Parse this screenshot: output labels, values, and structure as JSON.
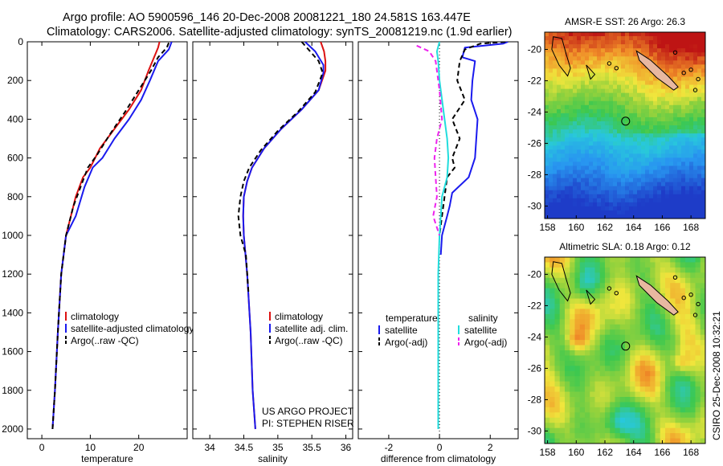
{
  "header": {
    "line1": "Argo profile: AO 5900596_146 20-Dec-2008 20081221_180 24.581S 163.447E",
    "line2": "Climatology: CARS2006. Satellite-adjusted climatology: synTS_20081219.nc (1.9d earlier)"
  },
  "credits": {
    "project": "US ARGO PROJECT",
    "pi": "PI: STEPHEN RISER",
    "side": "CSIRO 25-Dec-2008 10:32:21"
  },
  "colors": {
    "climatology": "#dd1111",
    "satellite": "#1a1aee",
    "argo": "#000000",
    "diff_temp_sat": "#1a1aee",
    "diff_sal_sat": "#22dddd",
    "diff_sal_argo": "#ee22ee"
  },
  "chart_data": [
    {
      "type": "line",
      "id": "temperature",
      "xlabel": "temperature",
      "xlim": [
        -3,
        30
      ],
      "ylim": [
        2050,
        0
      ],
      "y_reversed": true,
      "xticks": [
        0,
        10,
        20
      ],
      "yticks": [
        0,
        200,
        400,
        600,
        800,
        1000,
        1200,
        1400,
        1600,
        1800,
        2000
      ],
      "legend": [
        "climatology",
        "satellite-adjusted climatology",
        "Argo(..raw -QC)"
      ],
      "series": [
        {
          "name": "climatology",
          "color_key": "climatology",
          "points": [
            [
              24.3,
              0
            ],
            [
              24,
              30
            ],
            [
              23.5,
              60
            ],
            [
              22,
              150
            ],
            [
              20.5,
              250
            ],
            [
              18,
              350
            ],
            [
              15,
              450
            ],
            [
              12,
              550
            ],
            [
              10,
              650
            ],
            [
              8.5,
              700
            ],
            [
              7,
              800
            ],
            [
              5,
              1000
            ],
            [
              4,
              1200
            ],
            [
              3.3,
              1500
            ],
            [
              2.7,
              1800
            ],
            [
              2.2,
              2000
            ]
          ]
        },
        {
          "name": "satellite-adjusted climatology",
          "color_key": "satellite",
          "points": [
            [
              26.8,
              0
            ],
            [
              26.2,
              40
            ],
            [
              24,
              100
            ],
            [
              22.3,
              200
            ],
            [
              20.5,
              300
            ],
            [
              18,
              400
            ],
            [
              15,
              500
            ],
            [
              12.5,
              600
            ],
            [
              10.5,
              650
            ],
            [
              8.8,
              750
            ],
            [
              7,
              900
            ],
            [
              5,
              1000
            ],
            [
              4,
              1200
            ],
            [
              3.3,
              1500
            ],
            [
              2.7,
              1800
            ],
            [
              2.2,
              2000
            ]
          ]
        },
        {
          "name": "Argo(..raw -QC)",
          "color_key": "argo",
          "dashed": true,
          "points": [
            [
              26.2,
              5
            ],
            [
              25.8,
              30
            ],
            [
              24,
              80
            ],
            [
              22.5,
              150
            ],
            [
              20,
              250
            ],
            [
              17.5,
              350
            ],
            [
              14,
              480
            ],
            [
              11.5,
              580
            ],
            [
              9.5,
              650
            ],
            [
              8,
              750
            ],
            [
              6.5,
              850
            ],
            [
              5,
              1000
            ],
            [
              4,
              1200
            ],
            [
              3.3,
              1500
            ],
            [
              2.7,
              1800
            ],
            [
              2.2,
              2000
            ]
          ]
        }
      ]
    },
    {
      "type": "line",
      "id": "salinity",
      "xlabel": "salinity",
      "xlim": [
        33.75,
        36.1
      ],
      "ylim": [
        2050,
        0
      ],
      "y_reversed": true,
      "xticks": [
        34,
        34.5,
        35,
        35.5,
        36
      ],
      "legend": [
        "climatology",
        "satellite adj. clim.",
        "Argo(..raw -QC)"
      ],
      "series": [
        {
          "name": "climatology",
          "color_key": "climatology",
          "points": [
            [
              35.63,
              0
            ],
            [
              35.68,
              50
            ],
            [
              35.7,
              100
            ],
            [
              35.7,
              150
            ],
            [
              35.6,
              250
            ],
            [
              35.35,
              350
            ],
            [
              35.05,
              450
            ],
            [
              34.8,
              550
            ],
            [
              34.62,
              650
            ],
            [
              34.55,
              720
            ],
            [
              34.5,
              800
            ],
            [
              34.49,
              900
            ],
            [
              34.5,
              1000
            ],
            [
              34.55,
              1200
            ],
            [
              34.6,
              1500
            ],
            [
              34.63,
              1800
            ],
            [
              34.67,
              2000
            ]
          ]
        },
        {
          "name": "satellite adj. clim.",
          "color_key": "satellite",
          "points": [
            [
              35.4,
              0
            ],
            [
              35.55,
              50
            ],
            [
              35.67,
              120
            ],
            [
              35.67,
              160
            ],
            [
              35.6,
              250
            ],
            [
              35.35,
              350
            ],
            [
              35.05,
              450
            ],
            [
              34.8,
              550
            ],
            [
              34.62,
              650
            ],
            [
              34.55,
              720
            ],
            [
              34.5,
              800
            ],
            [
              34.49,
              900
            ],
            [
              34.5,
              1000
            ],
            [
              34.55,
              1200
            ],
            [
              34.6,
              1500
            ],
            [
              34.63,
              1800
            ],
            [
              34.67,
              2000
            ]
          ]
        },
        {
          "name": "Argo(..raw -QC)",
          "color_key": "argo",
          "dashed": true,
          "points": [
            [
              35.35,
              0
            ],
            [
              35.45,
              40
            ],
            [
              35.6,
              100
            ],
            [
              35.66,
              160
            ],
            [
              35.55,
              260
            ],
            [
              35.3,
              360
            ],
            [
              35,
              460
            ],
            [
              34.75,
              560
            ],
            [
              34.58,
              650
            ],
            [
              34.5,
              720
            ],
            [
              34.45,
              800
            ],
            [
              34.42,
              900
            ],
            [
              34.45,
              1000
            ],
            [
              34.53,
              1100
            ],
            [
              34.57,
              1300
            ]
          ]
        }
      ]
    },
    {
      "type": "line",
      "id": "difference",
      "xlabel": "difference from climatology",
      "xlim": [
        -3.2,
        3.1
      ],
      "ylim": [
        2050,
        0
      ],
      "y_reversed": true,
      "xticks": [
        -2,
        0,
        2
      ],
      "zero_line": true,
      "legend_left_title": "temperature",
      "legend_right_title": "salinity",
      "legend_left": [
        "satellite",
        "Argo(-adj)"
      ],
      "legend_right": [
        "satellite",
        "Argo(-adj)"
      ],
      "series": [
        {
          "name": "temperature satellite",
          "color_key": "diff_temp_sat",
          "points": [
            [
              2.7,
              0
            ],
            [
              2.5,
              10
            ],
            [
              1,
              30
            ],
            [
              0.9,
              80
            ],
            [
              1.4,
              100
            ],
            [
              1.3,
              200
            ],
            [
              1.25,
              300
            ],
            [
              1.5,
              400
            ],
            [
              1.45,
              500
            ],
            [
              1.4,
              600
            ],
            [
              1.15,
              700
            ],
            [
              0.5,
              780
            ],
            [
              0.4,
              850
            ],
            [
              0.3,
              900
            ],
            [
              0.1,
              1000
            ],
            [
              0.05,
              1100
            ]
          ]
        },
        {
          "name": "temperature Argo(-adj)",
          "color_key": "argo",
          "dashed": true,
          "points": [
            [
              2.6,
              0
            ],
            [
              1.6,
              10
            ],
            [
              1,
              40
            ],
            [
              0.8,
              100
            ],
            [
              0.7,
              200
            ],
            [
              1,
              300
            ],
            [
              0.5,
              400
            ],
            [
              0.8,
              500
            ],
            [
              0.5,
              600
            ],
            [
              0.6,
              650
            ],
            [
              0.3,
              700
            ],
            [
              0.2,
              800
            ],
            [
              0.1,
              900
            ],
            [
              0,
              1000
            ]
          ]
        },
        {
          "name": "salinity satellite",
          "color_key": "diff_sal_sat",
          "points": [
            [
              0,
              0
            ],
            [
              -0.1,
              50
            ],
            [
              -0.05,
              100
            ],
            [
              0,
              200
            ],
            [
              0.2,
              400
            ],
            [
              0.3,
              500
            ],
            [
              0.35,
              600
            ],
            [
              0.3,
              700
            ],
            [
              0.1,
              800
            ],
            [
              0.05,
              900
            ],
            [
              0,
              1000
            ],
            [
              -0.05,
              1200
            ],
            [
              -0.05,
              1500
            ],
            [
              -0.05,
              1800
            ],
            [
              -0.05,
              2000
            ]
          ]
        },
        {
          "name": "salinity Argo(-adj)",
          "color_key": "diff_sal_argo",
          "dashed": true,
          "points": [
            [
              -0.9,
              20
            ],
            [
              -0.4,
              50
            ],
            [
              -0.15,
              100
            ],
            [
              0,
              250
            ],
            [
              0.1,
              400
            ],
            [
              -0.1,
              500
            ],
            [
              -0.2,
              600
            ],
            [
              -0.15,
              700
            ],
            [
              -0.1,
              800
            ],
            [
              -0.25,
              900
            ],
            [
              0,
              1000
            ]
          ]
        }
      ]
    }
  ],
  "maps": [
    {
      "title": "AMSR-E SST: 26 Argo: 26.3",
      "colormap": "sst",
      "xticks": [
        158,
        160,
        162,
        164,
        166,
        168
      ],
      "yticks": [
        -20,
        -22,
        -24,
        -26,
        -28,
        -30
      ],
      "xlim": [
        157.8,
        169
      ],
      "ylim": [
        -30.8,
        -18.9
      ],
      "marker": {
        "lon": 163.447,
        "lat": -24.581
      }
    },
    {
      "title": "Altimetric SLA: 0.18 Argo: 0.12",
      "colormap": "sla",
      "xticks": [
        158,
        160,
        162,
        164,
        166,
        168
      ],
      "yticks": [
        -20,
        -22,
        -24,
        -26,
        -28,
        -30
      ],
      "xlim": [
        157.8,
        169
      ],
      "ylim": [
        -30.8,
        -18.9
      ],
      "marker": {
        "lon": 163.447,
        "lat": -24.581
      }
    }
  ]
}
